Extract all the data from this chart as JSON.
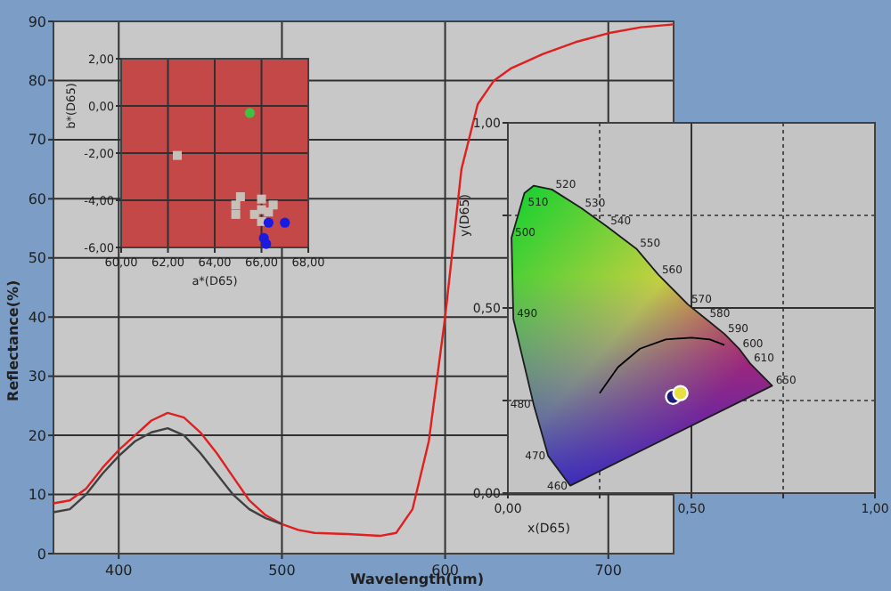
{
  "chart_data": [
    {
      "type": "line",
      "xlabel": "Wavelength(nm)",
      "ylabel": "Reflectance(%)",
      "xlim": [
        360,
        740
      ],
      "ylim": [
        0,
        90
      ],
      "xticks": [
        400,
        500,
        600,
        700
      ],
      "yticks": [
        0,
        10,
        20,
        30,
        40,
        50,
        60,
        70,
        80,
        90
      ],
      "grid": true,
      "line_style": "solid",
      "marker": "none",
      "x": [
        360,
        370,
        380,
        390,
        400,
        410,
        420,
        430,
        440,
        450,
        460,
        470,
        480,
        490,
        500,
        510,
        520,
        540,
        560,
        570,
        580,
        590,
        600,
        610,
        620,
        630,
        640,
        660,
        680,
        700,
        720,
        740
      ],
      "series": [
        {
          "color": "#e02020",
          "values": [
            8.5,
            9,
            11,
            14.5,
            17.5,
            20,
            22.5,
            23.8,
            23,
            20.5,
            17,
            13,
            9,
            6.5,
            5,
            4,
            3.5,
            3.3,
            3,
            3.5,
            7.5,
            19,
            40,
            65,
            76,
            80,
            82,
            84.5,
            86.5,
            88,
            89,
            89.5
          ]
        },
        {
          "color": "#404040",
          "values": [
            7,
            7.5,
            10,
            13.5,
            16.5,
            19,
            20.5,
            21.2,
            20,
            17,
            13.5,
            10,
            7.5,
            6,
            5,
            null,
            null,
            null,
            null,
            null,
            null,
            null,
            null,
            null,
            null,
            null,
            null,
            null,
            null,
            null,
            null,
            null
          ]
        }
      ]
    },
    {
      "type": "scatter",
      "xlabel": "a*(D65)",
      "ylabel": "b*(D65)",
      "xlim": [
        60,
        68
      ],
      "ylim": [
        -6,
        2
      ],
      "grid": true,
      "xticks": [
        {
          "value": 60,
          "label": "60,00"
        },
        {
          "value": 62,
          "label": "62,00"
        },
        {
          "value": 64,
          "label": "64,00"
        },
        {
          "value": 66,
          "label": "66,00"
        },
        {
          "value": 68,
          "label": "68,00"
        }
      ],
      "yticks": [
        {
          "value": -6,
          "label": "-6,00"
        },
        {
          "value": -4,
          "label": "-4,00"
        },
        {
          "value": -2,
          "label": "-2,00"
        },
        {
          "value": 0,
          "label": "0,00"
        },
        {
          "value": 2,
          "label": "2,00"
        }
      ],
      "series": [
        {
          "color": "#c8c0b8",
          "marker": "square",
          "x": [
            62.4,
            65.1,
            66,
            64.9,
            66.5,
            66,
            64.9,
            65.7,
            66.3,
            66
          ],
          "values": [
            -2.1,
            -3.85,
            -3.95,
            -4.2,
            -4.2,
            -4.4,
            -4.6,
            -4.6,
            -4.5,
            -4.9
          ]
        },
        {
          "color": "#40c040",
          "marker": "circle",
          "x": [
            65.5
          ],
          "values": [
            -0.3
          ]
        },
        {
          "color": "#1a1ae0",
          "marker": "circle",
          "x": [
            66.3,
            67,
            66.1,
            66.2
          ],
          "values": [
            -4.95,
            -4.95,
            -5.6,
            -5.85
          ]
        }
      ]
    },
    {
      "type": "line",
      "xlabel": "x(D65)",
      "ylabel": "y(D65)",
      "xlim": [
        0,
        1
      ],
      "ylim": [
        0,
        1
      ],
      "grid": true,
      "marker": "none",
      "xticks": [
        {
          "value": 0,
          "label": "0,00"
        },
        {
          "value": 0.25,
          "label": null
        },
        {
          "value": 0.5,
          "label": "0,50"
        },
        {
          "value": 0.75,
          "label": null
        },
        {
          "value": 1,
          "label": "1,00"
        }
      ],
      "yticks": [
        {
          "value": 0,
          "label": "0,00"
        },
        {
          "value": 0.25,
          "label": null
        },
        {
          "value": 0.5,
          "label": "0,50"
        },
        {
          "value": 0.75,
          "label": null
        },
        {
          "value": 1,
          "label": "1,00"
        }
      ],
      "series": [
        {
          "type": "area",
          "color": "#1c1c1c",
          "x": [
            0.17,
            0.11,
            0.07,
            0.015,
            0.01,
            0.045,
            0.07,
            0.12,
            0.2,
            0.27,
            0.35,
            0.41,
            0.49,
            0.54,
            0.59,
            0.63,
            0.66,
            0.72,
            0.17
          ],
          "values": [
            0.02,
            0.1,
            0.24,
            0.47,
            0.69,
            0.81,
            0.83,
            0.82,
            0.77,
            0.72,
            0.66,
            0.59,
            0.51,
            0.47,
            0.43,
            0.39,
            0.35,
            0.29,
            0.02
          ]
        },
        {
          "color": "#000000",
          "x": [
            0.25,
            0.3,
            0.36,
            0.43,
            0.5,
            0.55,
            0.59
          ],
          "values": [
            0.27,
            0.34,
            0.39,
            0.415,
            0.42,
            0.415,
            0.4
          ]
        },
        {
          "type": "scatter",
          "marker": "circle",
          "color": "#1a1a80",
          "x": [
            0.45
          ],
          "values": [
            0.26
          ]
        },
        {
          "type": "scatter",
          "marker": "circle",
          "color": "#e8e040",
          "x": [
            0.47
          ],
          "values": [
            0.27
          ]
        }
      ],
      "annotations": [
        {
          "text": "460",
          "x": 0.17,
          "y": 0.02
        },
        {
          "text": "470",
          "x": 0.11,
          "y": 0.1
        },
        {
          "text": "480",
          "x": 0.07,
          "y": 0.24
        },
        {
          "text": "490",
          "x": 0.015,
          "y": 0.47
        },
        {
          "text": "500",
          "x": 0.01,
          "y": 0.69
        },
        {
          "text": "510",
          "x": 0.045,
          "y": 0.81
        },
        {
          "text": "520",
          "x": 0.12,
          "y": 0.82
        },
        {
          "text": "530",
          "x": 0.2,
          "y": 0.77
        },
        {
          "text": "540",
          "x": 0.27,
          "y": 0.72
        },
        {
          "text": "550",
          "x": 0.35,
          "y": 0.66
        },
        {
          "text": "560",
          "x": 0.41,
          "y": 0.59
        },
        {
          "text": "570",
          "x": 0.49,
          "y": 0.51
        },
        {
          "text": "580",
          "x": 0.54,
          "y": 0.47
        },
        {
          "text": "590",
          "x": 0.59,
          "y": 0.43
        },
        {
          "text": "600",
          "x": 0.63,
          "y": 0.39
        },
        {
          "text": "610",
          "x": 0.66,
          "y": 0.35
        },
        {
          "text": "650",
          "x": 0.72,
          "y": 0.29
        }
      ]
    }
  ]
}
